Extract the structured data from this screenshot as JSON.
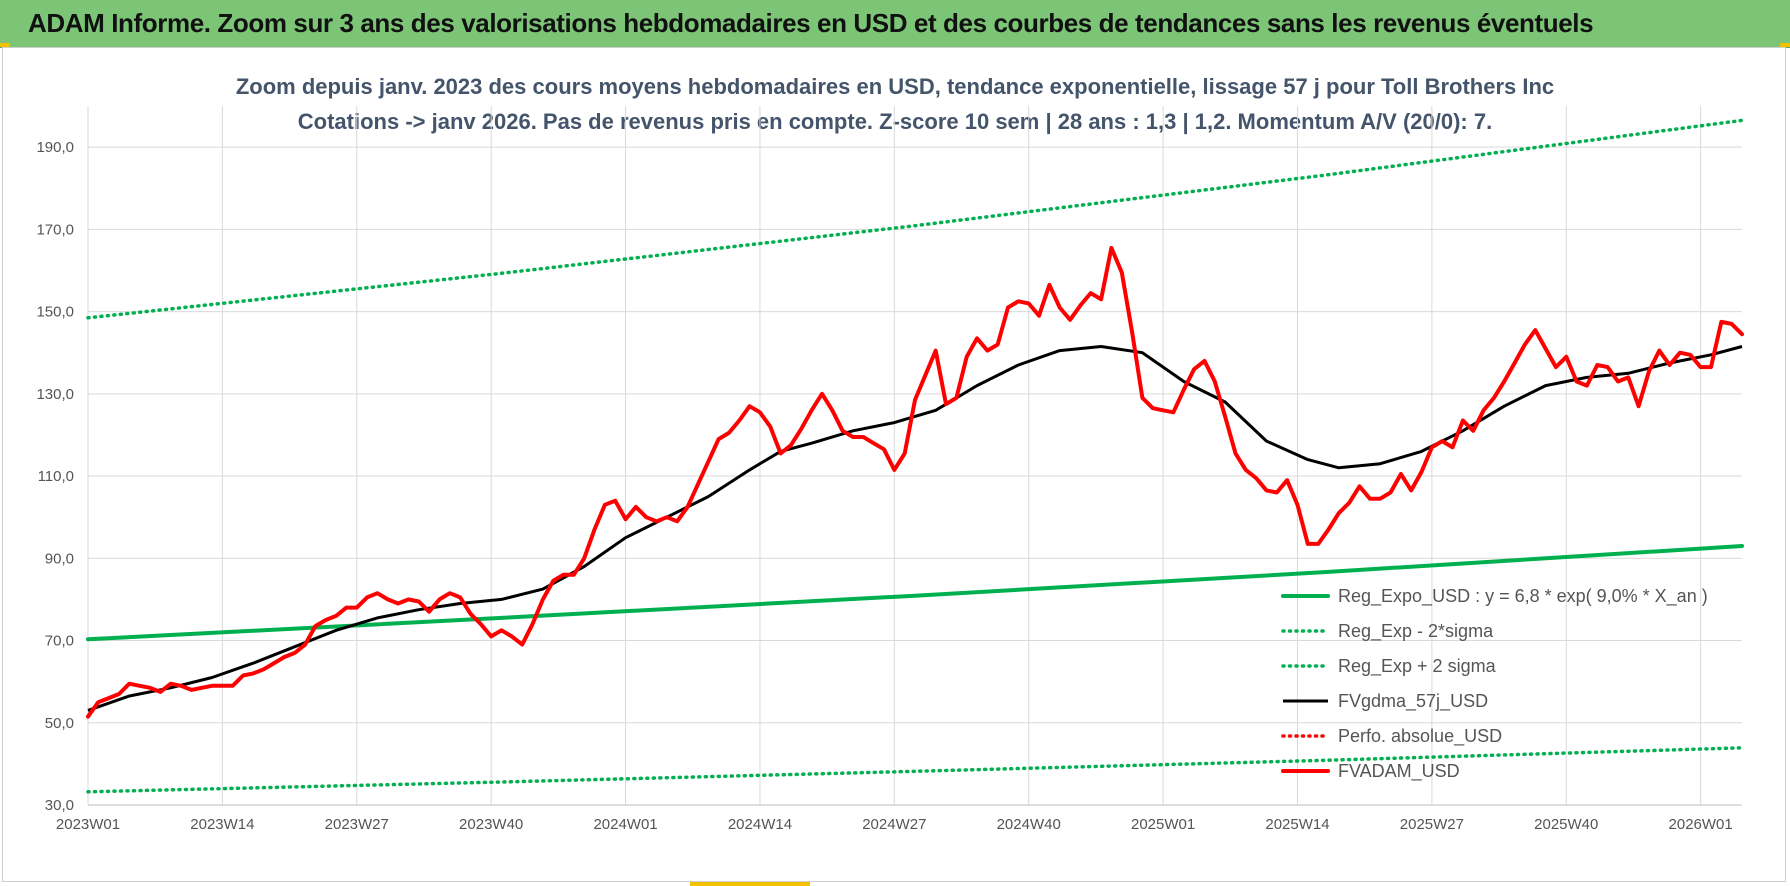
{
  "header": {
    "title": "ADAM Informe. Zoom sur 3 ans des valorisations hebdomadaires en USD et des courbes de tendances sans les revenus éventuels"
  },
  "chart_data": {
    "type": "line",
    "title_line1": "Zoom depuis janv. 2023 des cours moyens hebdomadaires en USD, tendance exponentielle, lissage 57 j pour Toll Brothers Inc",
    "title_line2": "Cotations -> janv 2026. Pas de revenus pris en compte. Z-score 10 sem | 28 ans : 1,3 | 1,2. Momentum A/V (20/0): 7.",
    "xlabel": "",
    "ylabel": "",
    "ylim": [
      30,
      200
    ],
    "yticks": [
      30,
      50,
      70,
      90,
      110,
      130,
      150,
      170,
      190
    ],
    "ytick_labels": [
      "30,0",
      "50,0",
      "70,0",
      "90,0",
      "110,0",
      "130,0",
      "150,0",
      "170,0",
      "190,0"
    ],
    "x_range_weeks": [
      0,
      160
    ],
    "xticks": [
      {
        "label": "2023W01",
        "week": 0
      },
      {
        "label": "2023W14",
        "week": 13
      },
      {
        "label": "2023W27",
        "week": 26
      },
      {
        "label": "2023W40",
        "week": 39
      },
      {
        "label": "2024W01",
        "week": 52
      },
      {
        "label": "2024W14",
        "week": 65
      },
      {
        "label": "2024W27",
        "week": 78
      },
      {
        "label": "2024W40",
        "week": 91
      },
      {
        "label": "2025W01",
        "week": 104
      },
      {
        "label": "2025W14",
        "week": 117
      },
      {
        "label": "2025W27",
        "week": 130
      },
      {
        "label": "2025W40",
        "week": 143
      },
      {
        "label": "2026W01",
        "week": 156
      }
    ],
    "series": [
      {
        "name": "Reg_Expo_USD : y = 6,8 * exp( 9,0% * X_an )",
        "color": "#00b050",
        "style": "solid-thick",
        "points": [
          [
            0,
            70.3
          ],
          [
            40,
            75.5
          ],
          [
            80,
            80.9
          ],
          [
            120,
            86.7
          ],
          [
            160,
            93.0
          ]
        ]
      },
      {
        "name": "Reg_Exp - 2*sigma",
        "color": "#00b050",
        "style": "dotted",
        "points": [
          [
            0,
            33.2
          ],
          [
            40,
            35.6
          ],
          [
            80,
            38.2
          ],
          [
            120,
            40.9
          ],
          [
            160,
            43.9
          ]
        ]
      },
      {
        "name": "Reg_Exp + 2 sigma",
        "color": "#00b050",
        "style": "dotted",
        "points": [
          [
            0,
            148.5
          ],
          [
            40,
            159.3
          ],
          [
            80,
            170.9
          ],
          [
            120,
            183.3
          ],
          [
            160,
            196.5
          ]
        ]
      },
      {
        "name": "FVgdma_57j_USD",
        "color": "#000000",
        "style": "solid",
        "points": [
          [
            0,
            53
          ],
          [
            4,
            56.5
          ],
          [
            8,
            58.5
          ],
          [
            12,
            61
          ],
          [
            16,
            64.5
          ],
          [
            20,
            68.5
          ],
          [
            24,
            72.5
          ],
          [
            28,
            75.5
          ],
          [
            32,
            77.5
          ],
          [
            36,
            79
          ],
          [
            40,
            80
          ],
          [
            44,
            82.5
          ],
          [
            48,
            88
          ],
          [
            52,
            95
          ],
          [
            56,
            100
          ],
          [
            60,
            105
          ],
          [
            64,
            111.5
          ],
          [
            67,
            116
          ],
          [
            70,
            118
          ],
          [
            74,
            121
          ],
          [
            78,
            123
          ],
          [
            82,
            126
          ],
          [
            86,
            132
          ],
          [
            90,
            137
          ],
          [
            94,
            140.5
          ],
          [
            98,
            141.5
          ],
          [
            102,
            140
          ],
          [
            106,
            133
          ],
          [
            110,
            128
          ],
          [
            114,
            118.5
          ],
          [
            118,
            114
          ],
          [
            121,
            112
          ],
          [
            125,
            113
          ],
          [
            129,
            116
          ],
          [
            133,
            121
          ],
          [
            137,
            127
          ],
          [
            141,
            132
          ],
          [
            145,
            134
          ],
          [
            149,
            135
          ],
          [
            153,
            137.5
          ],
          [
            157,
            139.5
          ],
          [
            160,
            141.5
          ]
        ]
      },
      {
        "name": "Perfo. absolue_USD",
        "color": "#ff0000",
        "style": "dotted",
        "points": []
      },
      {
        "name": "FVADAM_USD",
        "color": "#ff0000",
        "style": "solid-thick",
        "points": [
          [
            0,
            51.5
          ],
          [
            1,
            55
          ],
          [
            2,
            56
          ],
          [
            3,
            57
          ],
          [
            4,
            59.5
          ],
          [
            5,
            59
          ],
          [
            6,
            58.5
          ],
          [
            7,
            57.5
          ],
          [
            8,
            59.5
          ],
          [
            9,
            59
          ],
          [
            10,
            58
          ],
          [
            11,
            58.5
          ],
          [
            12,
            59
          ],
          [
            13,
            59
          ],
          [
            14,
            59
          ],
          [
            15,
            61.5
          ],
          [
            16,
            62
          ],
          [
            17,
            63
          ],
          [
            18,
            64.5
          ],
          [
            19,
            66
          ],
          [
            20,
            67
          ],
          [
            21,
            69
          ],
          [
            22,
            73.5
          ],
          [
            23,
            75
          ],
          [
            24,
            76
          ],
          [
            25,
            78
          ],
          [
            26,
            78
          ],
          [
            27,
            80.5
          ],
          [
            28,
            81.5
          ],
          [
            29,
            80
          ],
          [
            30,
            79
          ],
          [
            31,
            80
          ],
          [
            32,
            79.5
          ],
          [
            33,
            77
          ],
          [
            34,
            80
          ],
          [
            35,
            81.5
          ],
          [
            36,
            80.5
          ],
          [
            37,
            76.5
          ],
          [
            38,
            74
          ],
          [
            39,
            71
          ],
          [
            40,
            72.5
          ],
          [
            41,
            71
          ],
          [
            42,
            69
          ],
          [
            43,
            74
          ],
          [
            44,
            80
          ],
          [
            45,
            84.5
          ],
          [
            46,
            86
          ],
          [
            47,
            86
          ],
          [
            48,
            90
          ],
          [
            49,
            97
          ],
          [
            50,
            103
          ],
          [
            51,
            104
          ],
          [
            52,
            99.5
          ],
          [
            53,
            102.5
          ],
          [
            54,
            100
          ],
          [
            55,
            99
          ],
          [
            56,
            100
          ],
          [
            57,
            99
          ],
          [
            58,
            102.5
          ],
          [
            59,
            108
          ],
          [
            60,
            113.5
          ],
          [
            61,
            119
          ],
          [
            62,
            120.5
          ],
          [
            63,
            123.5
          ],
          [
            64,
            127
          ],
          [
            65,
            125.5
          ],
          [
            66,
            122
          ],
          [
            67,
            115.5
          ],
          [
            68,
            117.5
          ],
          [
            69,
            121.5
          ],
          [
            70,
            126
          ],
          [
            71,
            130
          ],
          [
            72,
            126
          ],
          [
            73,
            121
          ],
          [
            74,
            119.5
          ],
          [
            75,
            119.5
          ],
          [
            76,
            118
          ],
          [
            77,
            116.5
          ],
          [
            78,
            111.5
          ],
          [
            79,
            115.5
          ],
          [
            80,
            128.5
          ],
          [
            81,
            134.5
          ],
          [
            82,
            140.5
          ],
          [
            83,
            127.5
          ],
          [
            84,
            129
          ],
          [
            85,
            139
          ],
          [
            86,
            143.5
          ],
          [
            87,
            140.5
          ],
          [
            88,
            142
          ],
          [
            89,
            151
          ],
          [
            90,
            152.5
          ],
          [
            91,
            152
          ],
          [
            92,
            149
          ],
          [
            93,
            156.5
          ],
          [
            94,
            151
          ],
          [
            95,
            148
          ],
          [
            96,
            151.5
          ],
          [
            97,
            154.5
          ],
          [
            98,
            153
          ],
          [
            99,
            165.5
          ],
          [
            100,
            159.5
          ],
          [
            101,
            145
          ],
          [
            102,
            129
          ],
          [
            103,
            126.5
          ],
          [
            104,
            126
          ],
          [
            105,
            125.5
          ],
          [
            106,
            131
          ],
          [
            107,
            136
          ],
          [
            108,
            138
          ],
          [
            109,
            133
          ],
          [
            110,
            124.5
          ],
          [
            111,
            115.5
          ],
          [
            112,
            111.5
          ],
          [
            113,
            109.5
          ],
          [
            114,
            106.5
          ],
          [
            115,
            106
          ],
          [
            116,
            109
          ],
          [
            117,
            103
          ],
          [
            118,
            93.5
          ],
          [
            119,
            93.5
          ],
          [
            120,
            97
          ],
          [
            121,
            101
          ],
          [
            122,
            103.5
          ],
          [
            123,
            107.5
          ],
          [
            124,
            104.5
          ],
          [
            125,
            104.5
          ],
          [
            126,
            106
          ],
          [
            127,
            110.5
          ],
          [
            128,
            106.5
          ],
          [
            129,
            111
          ],
          [
            130,
            117
          ],
          [
            131,
            118.5
          ],
          [
            132,
            117
          ],
          [
            133,
            123.5
          ],
          [
            134,
            121
          ],
          [
            135,
            126
          ],
          [
            136,
            129
          ],
          [
            137,
            133
          ],
          [
            138,
            137.5
          ],
          [
            139,
            142
          ],
          [
            140,
            145.5
          ],
          [
            141,
            141
          ],
          [
            142,
            136.5
          ],
          [
            143,
            139
          ],
          [
            144,
            133
          ],
          [
            145,
            132
          ],
          [
            146,
            137
          ],
          [
            147,
            136.5
          ],
          [
            148,
            133
          ],
          [
            149,
            134
          ],
          [
            150,
            127
          ],
          [
            151,
            135.5
          ],
          [
            152,
            140.5
          ],
          [
            153,
            137
          ],
          [
            154,
            140
          ],
          [
            155,
            139.5
          ],
          [
            156,
            136.5
          ],
          [
            157,
            136.5
          ],
          [
            158,
            147.5
          ],
          [
            159,
            147
          ],
          [
            160,
            144.5
          ]
        ]
      }
    ],
    "legend": {
      "placement": "bottom-right",
      "entries": [
        {
          "label": "Reg_Expo_USD : y = 6,8 * exp( 9,0% * X_an )",
          "color": "#00b050",
          "style": "solid-thick"
        },
        {
          "label": "Reg_Exp - 2*sigma",
          "color": "#00b050",
          "style": "dotted"
        },
        {
          "label": "Reg_Exp + 2 sigma",
          "color": "#00b050",
          "style": "dotted"
        },
        {
          "label": "FVgdma_57j_USD",
          "color": "#000000",
          "style": "solid"
        },
        {
          "label": "Perfo. absolue_USD",
          "color": "#ff0000",
          "style": "dotted"
        },
        {
          "label": "FVADAM_USD",
          "color": "#ff0000",
          "style": "solid-thick"
        }
      ]
    },
    "grid": true
  }
}
